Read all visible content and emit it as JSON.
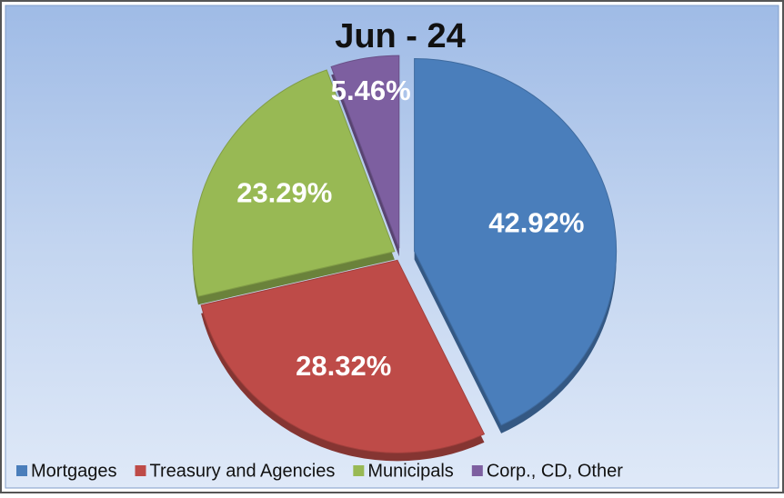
{
  "chart_data": {
    "type": "pie",
    "title": "Jun - 24",
    "categories": [
      "Mortgages",
      "Treasury and Agencies",
      "Municipals",
      "Corp., CD, Other"
    ],
    "values": [
      42.92,
      28.32,
      23.29,
      5.46
    ],
    "value_labels": [
      "42.92%",
      "28.32%",
      "23.29%",
      "5.46%"
    ],
    "colors": [
      "#4a7ebb",
      "#be4b48",
      "#98b954",
      "#7d5fa0"
    ]
  }
}
